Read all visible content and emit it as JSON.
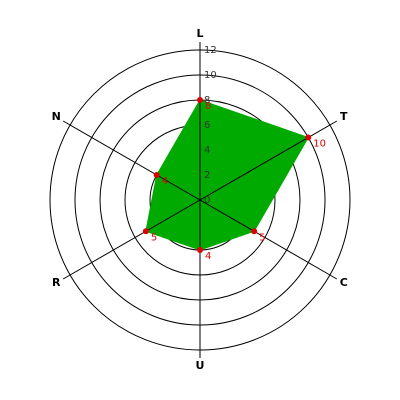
{
  "chart_data": {
    "type": "radar",
    "categories": [
      "L",
      "T",
      "C",
      "U",
      "R",
      "N"
    ],
    "values": [
      8,
      10,
      5,
      4,
      5,
      4
    ],
    "color": "#00aa00",
    "marker_color": "#dd0000",
    "rlim": [
      0,
      12
    ],
    "rticks": [
      0,
      2,
      4,
      6,
      8,
      10,
      12
    ],
    "grid": true
  }
}
